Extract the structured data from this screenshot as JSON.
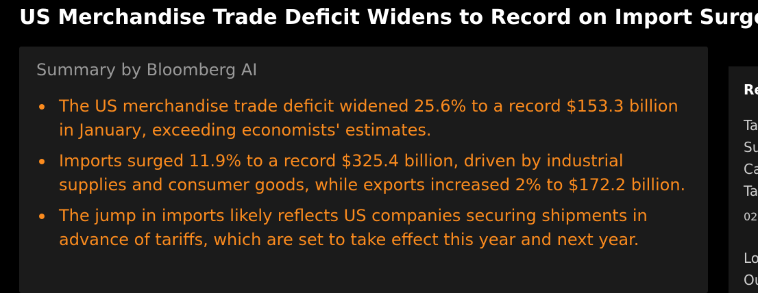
{
  "headline": "US Merchandise Trade Deficit Widens to Record on Import Surge",
  "summary": {
    "heading": "Summary by Bloomberg AI",
    "bullets": [
      "The US merchandise trade deficit widened 25.6% to a record $153.3 billion in January, exceeding economists' estimates.",
      "Imports surged 11.9% to a record $325.4 billion, driven by industrial supplies and consumer goods, while exports increased 2% to $172.2 billion.",
      "The jump in imports likely reflects US companies securing shipments in advance of tariffs, which are set to take effect this year and next year."
    ]
  },
  "related_panel": {
    "heading": "Re",
    "lines": [
      "Ta",
      "Su",
      "Ca",
      "Ta",
      "02",
      "Lo",
      "Ou"
    ]
  },
  "colors": {
    "background": "#000000",
    "card": "#1b1b1b",
    "accent_orange": "#fb8b1e",
    "heading_gray": "#9a9a9a"
  }
}
